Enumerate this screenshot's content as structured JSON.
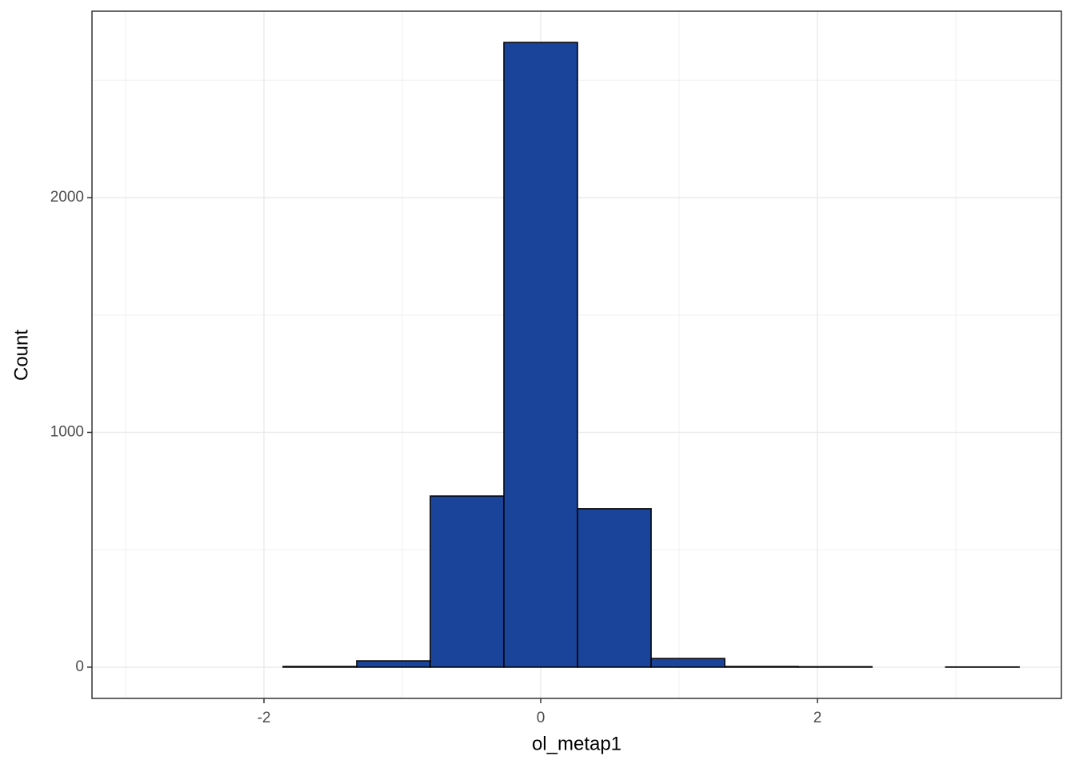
{
  "chart_data": {
    "type": "histogram",
    "x_label": "ol_metap1",
    "y_label": "Count",
    "bins": [
      -2.926,
      -2.394,
      -1.862,
      -1.33,
      -0.798,
      -0.266,
      0.266,
      0.798,
      1.33,
      1.862,
      2.394,
      2.926,
      3.458
    ],
    "counts": [
      0,
      0,
      3,
      27,
      729,
      2661,
      675,
      37,
      3,
      2,
      0,
      1
    ],
    "color": "#1a4499",
    "edge_color": "#000000",
    "xlim": [
      -3.243,
      3.763
    ],
    "ylim": [
      -133,
      2794
    ],
    "xticks": [
      -2,
      0,
      2
    ],
    "yticks": [
      0,
      1000,
      2000
    ],
    "x_minor_ticks": [
      -3,
      -1,
      1,
      3
    ],
    "y_minor_ticks": [
      500,
      1500,
      2500
    ],
    "grid": true
  }
}
